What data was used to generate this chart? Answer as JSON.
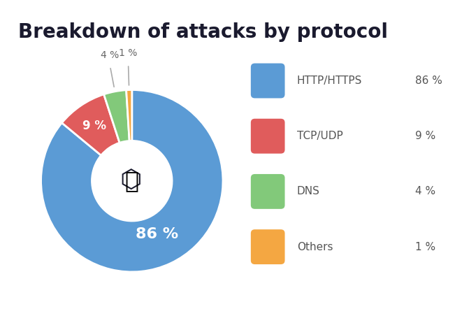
{
  "title": "Breakdown of attacks by protocol",
  "labels": [
    "HTTP/HTTPS",
    "TCP/UDP",
    "DNS",
    "Others"
  ],
  "values": [
    86,
    9,
    4,
    1
  ],
  "colors": [
    "#5b9bd5",
    "#e05c5c",
    "#82c97a",
    "#f4a742"
  ],
  "text_labels": [
    "86 %",
    "9 %",
    "4 %",
    "1 %"
  ],
  "legend_labels": [
    "HTTP/HTTPS",
    "TCP/UDP",
    "DNS",
    "Others"
  ],
  "legend_values": [
    "86 %",
    "9 %",
    "4 %",
    "1 %"
  ],
  "background_color": "#ffffff",
  "title_fontsize": 20,
  "title_fontweight": "bold",
  "title_color": "#1a1a2e",
  "wedge_edge_color": "#ffffff",
  "startangle": 90
}
